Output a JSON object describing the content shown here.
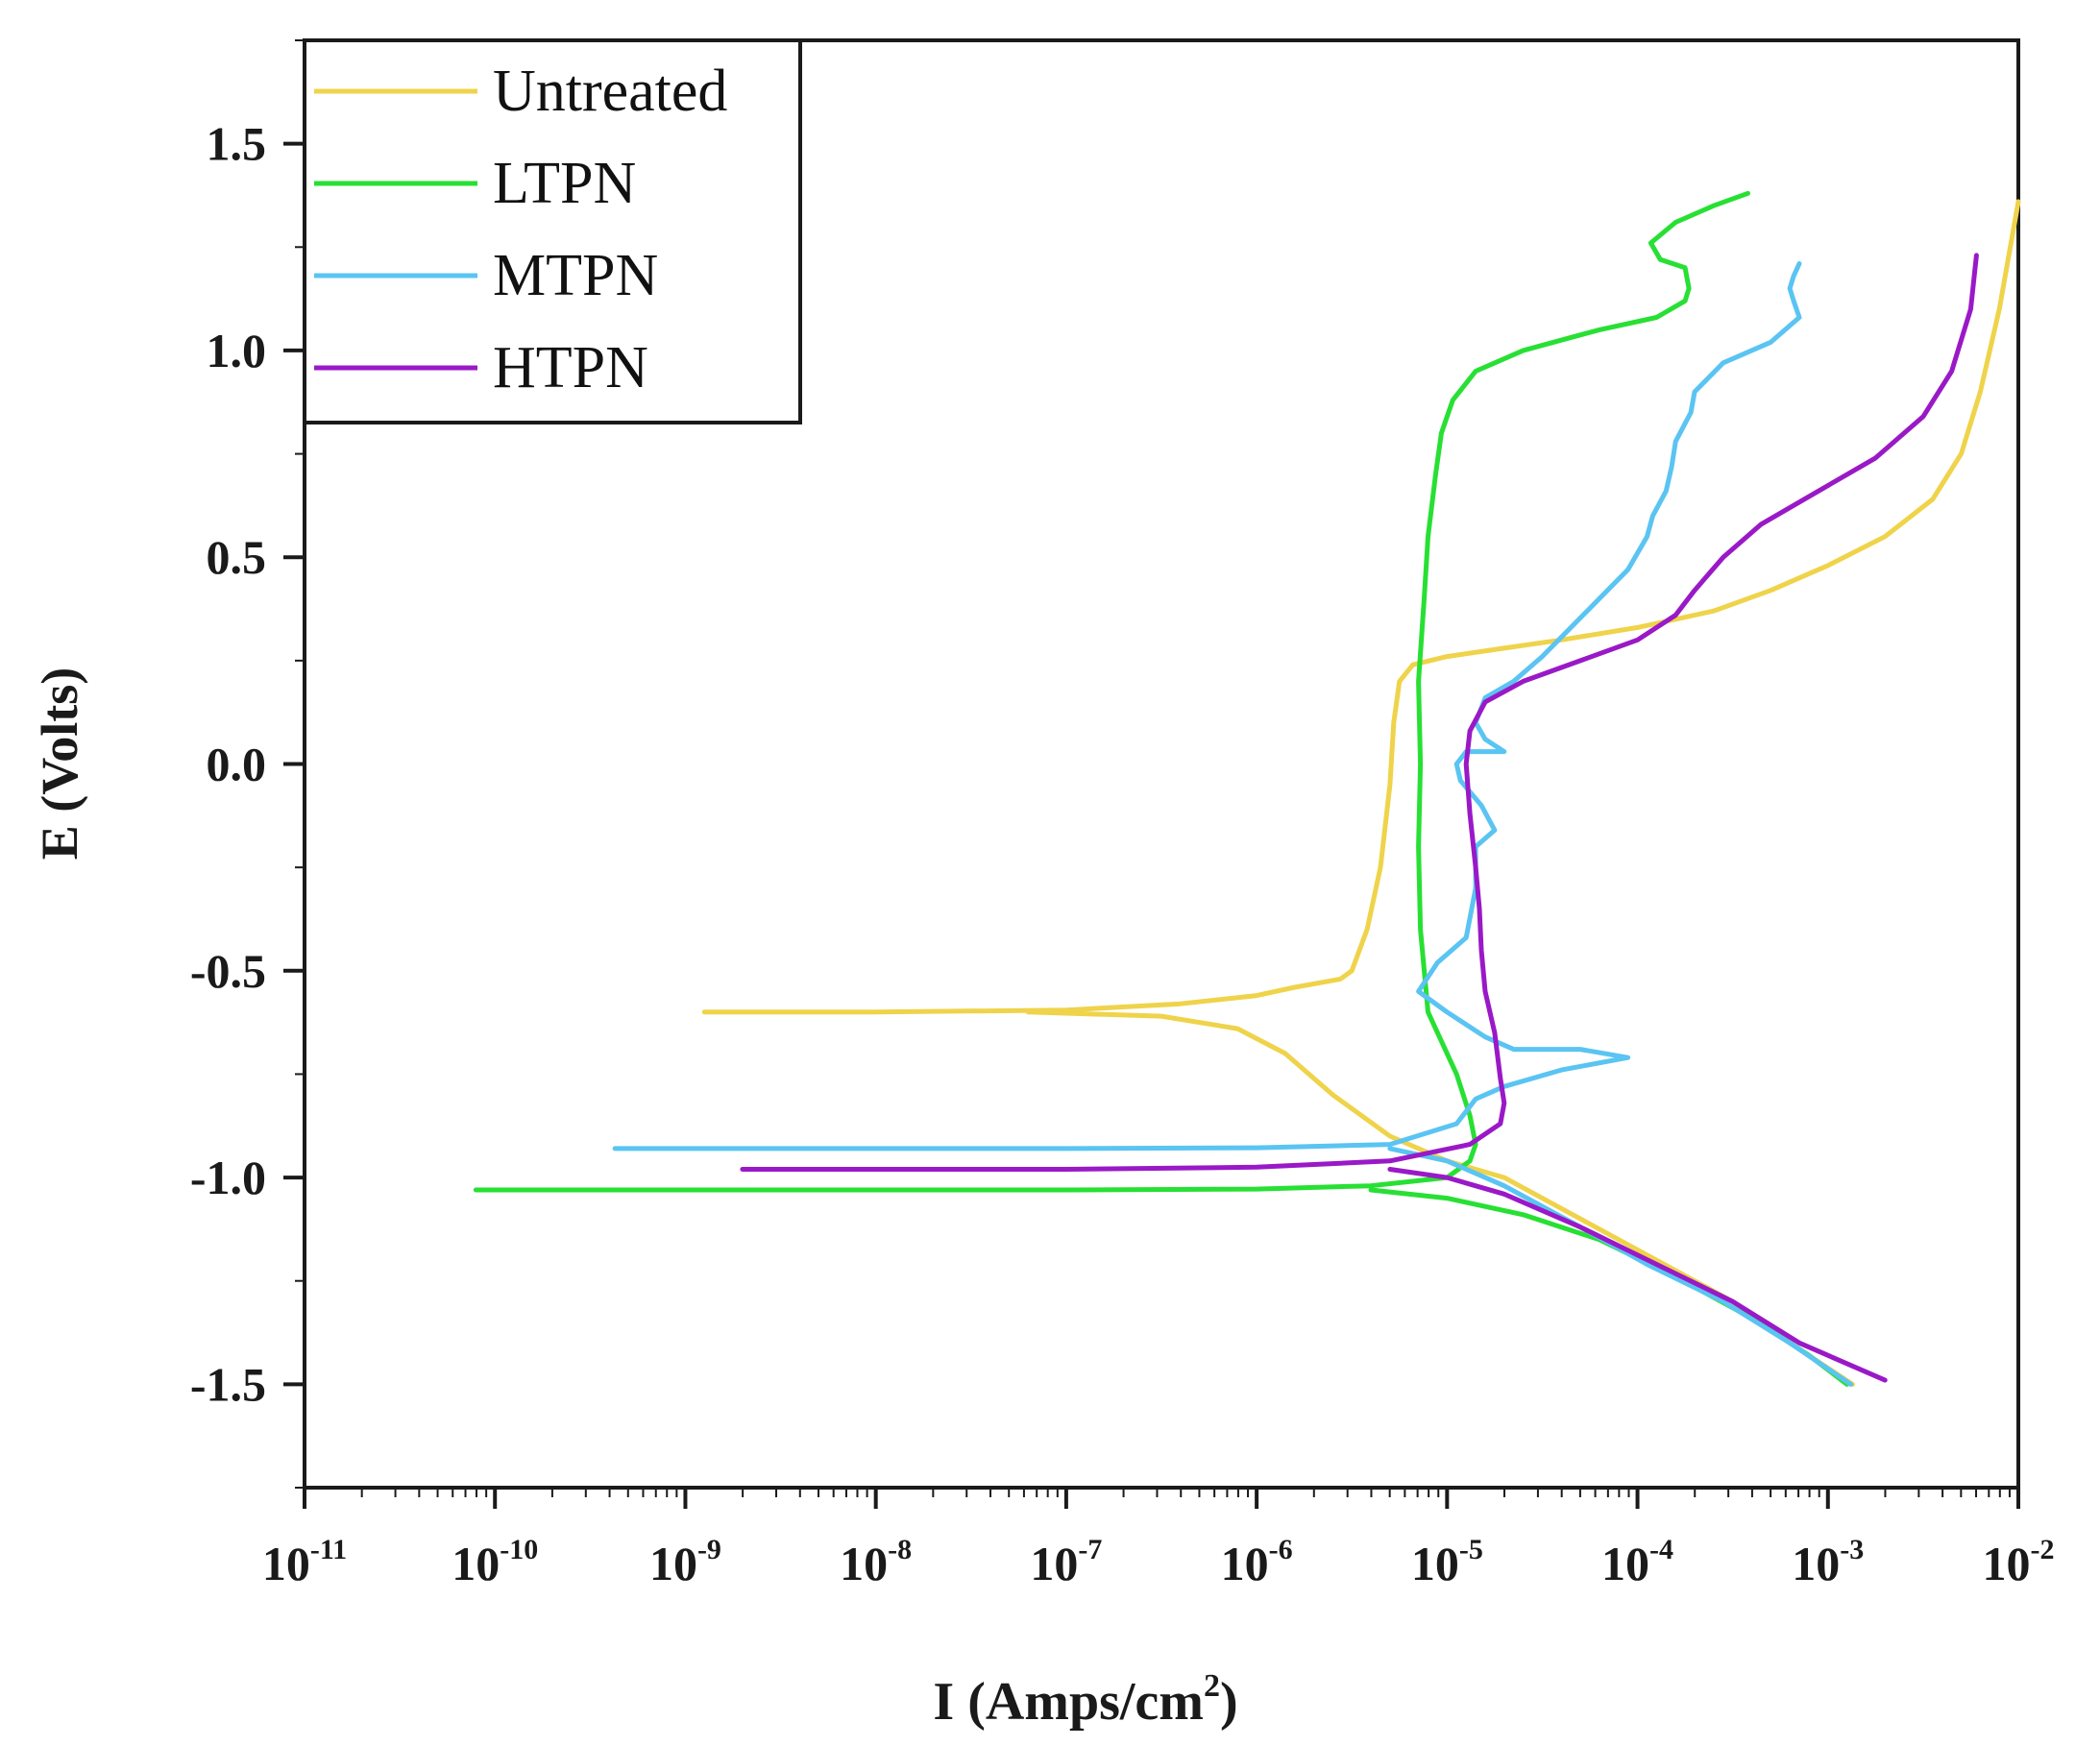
{
  "chart_data": {
    "type": "line",
    "title": "",
    "xlabel": "I (Amps/cm",
    "xlabel_sup": "2",
    "xlabel_end": ")",
    "ylabel": "E (Volts)",
    "x_scale": "log",
    "xlim": [
      -11,
      -2
    ],
    "ylim": [
      -1.75,
      1.75
    ],
    "x_ticks": [
      {
        "exp": -11,
        "base": "10",
        "sup": "-11"
      },
      {
        "exp": -10,
        "base": "10",
        "sup": "-10"
      },
      {
        "exp": -9,
        "base": "10",
        "sup": "-9"
      },
      {
        "exp": -8,
        "base": "10",
        "sup": "-8"
      },
      {
        "exp": -7,
        "base": "10",
        "sup": "-7"
      },
      {
        "exp": -6,
        "base": "10",
        "sup": "-6"
      },
      {
        "exp": -5,
        "base": "10",
        "sup": "-5"
      },
      {
        "exp": -4,
        "base": "10",
        "sup": "-4"
      },
      {
        "exp": -3,
        "base": "10",
        "sup": "-3"
      },
      {
        "exp": -2,
        "base": "10",
        "sup": "-2"
      }
    ],
    "y_ticks": [
      {
        "value": 1.5,
        "label": "1.5"
      },
      {
        "value": 1.0,
        "label": "1.0"
      },
      {
        "value": 0.5,
        "label": "0.5"
      },
      {
        "value": 0.0,
        "label": "0.0"
      },
      {
        "value": -0.5,
        "label": "-0.5"
      },
      {
        "value": -1.0,
        "label": "-1.0"
      },
      {
        "value": -1.5,
        "label": "-1.5"
      }
    ],
    "grid": false,
    "legend_position": "top-left",
    "series": [
      {
        "name": "Untreated",
        "color": "#EFD34A",
        "points": [
          [
            -8.9,
            -0.6
          ],
          [
            -8.0,
            -0.6
          ],
          [
            -7.0,
            -0.595
          ],
          [
            -6.4,
            -0.58
          ],
          [
            -6.0,
            -0.56
          ],
          [
            -5.8,
            -0.54
          ],
          [
            -5.56,
            -0.52
          ],
          [
            -5.5,
            -0.5
          ],
          [
            -5.42,
            -0.4
          ],
          [
            -5.35,
            -0.25
          ],
          [
            -5.3,
            -0.05
          ],
          [
            -5.28,
            0.1
          ],
          [
            -5.25,
            0.2
          ],
          [
            -5.18,
            0.24
          ],
          [
            -5.0,
            0.26
          ],
          [
            -4.7,
            0.28
          ],
          [
            -4.4,
            0.3
          ],
          [
            -4.0,
            0.33
          ],
          [
            -3.6,
            0.37
          ],
          [
            -3.3,
            0.42
          ],
          [
            -3.0,
            0.48
          ],
          [
            -2.7,
            0.55
          ],
          [
            -2.45,
            0.64
          ],
          [
            -2.3,
            0.75
          ],
          [
            -2.2,
            0.9
          ],
          [
            -2.1,
            1.1
          ],
          [
            -2.0,
            1.36
          ]
        ],
        "branch2": [
          [
            -7.2,
            -0.6
          ],
          [
            -6.5,
            -0.61
          ],
          [
            -6.1,
            -0.64
          ],
          [
            -5.85,
            -0.7
          ],
          [
            -5.6,
            -0.8
          ],
          [
            -5.3,
            -0.9
          ],
          [
            -5.0,
            -0.96
          ],
          [
            -4.7,
            -1.0
          ],
          [
            -4.3,
            -1.1
          ],
          [
            -3.9,
            -1.2
          ],
          [
            -3.5,
            -1.3
          ],
          [
            -3.2,
            -1.4
          ],
          [
            -2.87,
            -1.5
          ]
        ]
      },
      {
        "name": "LTPN",
        "color": "#27E033",
        "points": [
          [
            -10.1,
            -1.03
          ],
          [
            -8.0,
            -1.03
          ],
          [
            -7.0,
            -1.03
          ],
          [
            -6.0,
            -1.028
          ],
          [
            -5.4,
            -1.02
          ],
          [
            -5.0,
            -1.0
          ],
          [
            -4.88,
            -0.96
          ],
          [
            -4.85,
            -0.92
          ],
          [
            -4.88,
            -0.85
          ],
          [
            -4.95,
            -0.75
          ],
          [
            -5.1,
            -0.6
          ],
          [
            -5.14,
            -0.4
          ],
          [
            -5.15,
            -0.2
          ],
          [
            -5.14,
            0.0
          ],
          [
            -5.15,
            0.2
          ],
          [
            -5.12,
            0.4
          ],
          [
            -5.1,
            0.55
          ],
          [
            -5.06,
            0.7
          ],
          [
            -5.03,
            0.8
          ],
          [
            -4.97,
            0.88
          ],
          [
            -4.85,
            0.95
          ],
          [
            -4.6,
            1.0
          ],
          [
            -4.2,
            1.05
          ],
          [
            -3.9,
            1.08
          ],
          [
            -3.75,
            1.12
          ],
          [
            -3.73,
            1.15
          ],
          [
            -3.75,
            1.2
          ],
          [
            -3.88,
            1.22
          ],
          [
            -3.93,
            1.26
          ],
          [
            -3.8,
            1.31
          ],
          [
            -3.6,
            1.35
          ],
          [
            -3.42,
            1.38
          ]
        ],
        "branch2": [
          [
            -5.4,
            -1.03
          ],
          [
            -5.0,
            -1.05
          ],
          [
            -4.6,
            -1.09
          ],
          [
            -4.2,
            -1.15
          ],
          [
            -3.8,
            -1.24
          ],
          [
            -3.4,
            -1.34
          ],
          [
            -3.1,
            -1.43
          ],
          [
            -2.9,
            -1.5
          ]
        ]
      },
      {
        "name": "MTPN",
        "color": "#5AC4F2",
        "points": [
          [
            -9.37,
            -0.93
          ],
          [
            -8.0,
            -0.93
          ],
          [
            -7.0,
            -0.93
          ],
          [
            -6.0,
            -0.928
          ],
          [
            -5.3,
            -0.92
          ],
          [
            -4.95,
            -0.87
          ],
          [
            -4.85,
            -0.81
          ],
          [
            -4.7,
            -0.78
          ],
          [
            -4.4,
            -0.74
          ],
          [
            -4.05,
            -0.71
          ],
          [
            -4.3,
            -0.69
          ],
          [
            -4.65,
            -0.69
          ],
          [
            -4.8,
            -0.66
          ],
          [
            -5.0,
            -0.6
          ],
          [
            -5.15,
            -0.55
          ],
          [
            -5.05,
            -0.48
          ],
          [
            -4.9,
            -0.42
          ],
          [
            -4.85,
            -0.3
          ],
          [
            -4.85,
            -0.2
          ],
          [
            -4.75,
            -0.16
          ],
          [
            -4.82,
            -0.1
          ],
          [
            -4.93,
            -0.04
          ],
          [
            -4.95,
            0.0
          ],
          [
            -4.9,
            0.03
          ],
          [
            -4.7,
            0.03
          ],
          [
            -4.8,
            0.06
          ],
          [
            -4.85,
            0.1
          ],
          [
            -4.8,
            0.16
          ],
          [
            -4.65,
            0.2
          ],
          [
            -4.5,
            0.26
          ],
          [
            -4.35,
            0.33
          ],
          [
            -4.2,
            0.4
          ],
          [
            -4.05,
            0.47
          ],
          [
            -3.95,
            0.55
          ],
          [
            -3.92,
            0.6
          ],
          [
            -3.85,
            0.66
          ],
          [
            -3.82,
            0.72
          ],
          [
            -3.8,
            0.78
          ],
          [
            -3.72,
            0.85
          ],
          [
            -3.7,
            0.9
          ],
          [
            -3.55,
            0.97
          ],
          [
            -3.3,
            1.02
          ],
          [
            -3.15,
            1.08
          ],
          [
            -3.18,
            1.12
          ],
          [
            -3.2,
            1.15
          ],
          [
            -3.18,
            1.18
          ],
          [
            -3.15,
            1.21
          ]
        ],
        "branch2": [
          [
            -5.3,
            -0.93
          ],
          [
            -5.0,
            -0.96
          ],
          [
            -4.7,
            -1.02
          ],
          [
            -4.3,
            -1.12
          ],
          [
            -3.95,
            -1.21
          ],
          [
            -3.55,
            -1.3
          ],
          [
            -3.2,
            -1.4
          ],
          [
            -2.88,
            -1.5
          ]
        ]
      },
      {
        "name": "HTPN",
        "color": "#9A19C7",
        "points": [
          [
            -8.7,
            -0.98
          ],
          [
            -8.0,
            -0.98
          ],
          [
            -7.0,
            -0.98
          ],
          [
            -6.0,
            -0.975
          ],
          [
            -5.3,
            -0.96
          ],
          [
            -4.88,
            -0.92
          ],
          [
            -4.72,
            -0.87
          ],
          [
            -4.7,
            -0.82
          ],
          [
            -4.72,
            -0.76
          ],
          [
            -4.75,
            -0.65
          ],
          [
            -4.8,
            -0.55
          ],
          [
            -4.82,
            -0.45
          ],
          [
            -4.83,
            -0.35
          ],
          [
            -4.85,
            -0.25
          ],
          [
            -4.88,
            -0.12
          ],
          [
            -4.9,
            0.0
          ],
          [
            -4.88,
            0.08
          ],
          [
            -4.8,
            0.15
          ],
          [
            -4.6,
            0.2
          ],
          [
            -4.3,
            0.25
          ],
          [
            -4.0,
            0.3
          ],
          [
            -3.8,
            0.36
          ],
          [
            -3.7,
            0.42
          ],
          [
            -3.55,
            0.5
          ],
          [
            -3.35,
            0.58
          ],
          [
            -3.05,
            0.66
          ],
          [
            -2.75,
            0.74
          ],
          [
            -2.5,
            0.84
          ],
          [
            -2.35,
            0.95
          ],
          [
            -2.25,
            1.1
          ],
          [
            -2.22,
            1.23
          ]
        ],
        "branch2": [
          [
            -5.3,
            -0.98
          ],
          [
            -5.0,
            -1.0
          ],
          [
            -4.7,
            -1.04
          ],
          [
            -4.3,
            -1.12
          ],
          [
            -3.9,
            -1.21
          ],
          [
            -3.5,
            -1.3
          ],
          [
            -3.15,
            -1.4
          ],
          [
            -2.7,
            -1.49
          ]
        ]
      }
    ]
  }
}
